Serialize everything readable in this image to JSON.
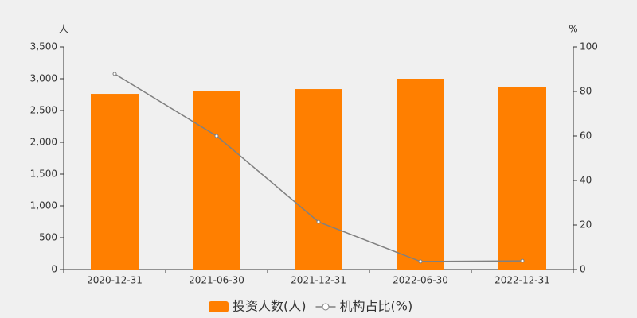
{
  "chart_data": {
    "type": "bar",
    "y_label": "人",
    "y2_label": "%",
    "categories": [
      "2020-12-31",
      "2021-06-30",
      "2021-12-31",
      "2022-06-30",
      "2022-12-31"
    ],
    "series": [
      {
        "name": "投资人数(人)",
        "type": "bar",
        "color": "#ff7f00",
        "values": [
          2762,
          2812,
          2837,
          3000,
          2875
        ]
      },
      {
        "name": "机构占比(%)",
        "type": "line",
        "axis": "y2",
        "color": "#808080",
        "values": [
          87.9,
          60,
          21.4,
          3.6,
          3.9
        ]
      }
    ],
    "ylim": [
      0,
      3500
    ],
    "yticks": [
      0,
      500,
      {
        "value": 1000,
        "label": "1,000"
      },
      {
        "value": 1500,
        "label": "1,500"
      },
      {
        "value": 2000,
        "label": "2,000"
      },
      {
        "value": 2500,
        "label": "2,500"
      },
      {
        "value": 3000,
        "label": "3,000"
      },
      {
        "value": 3500,
        "label": "3,500"
      }
    ],
    "y2lim": [
      0,
      100
    ],
    "y2ticks": [
      0,
      20,
      40,
      60,
      80,
      100
    ]
  }
}
